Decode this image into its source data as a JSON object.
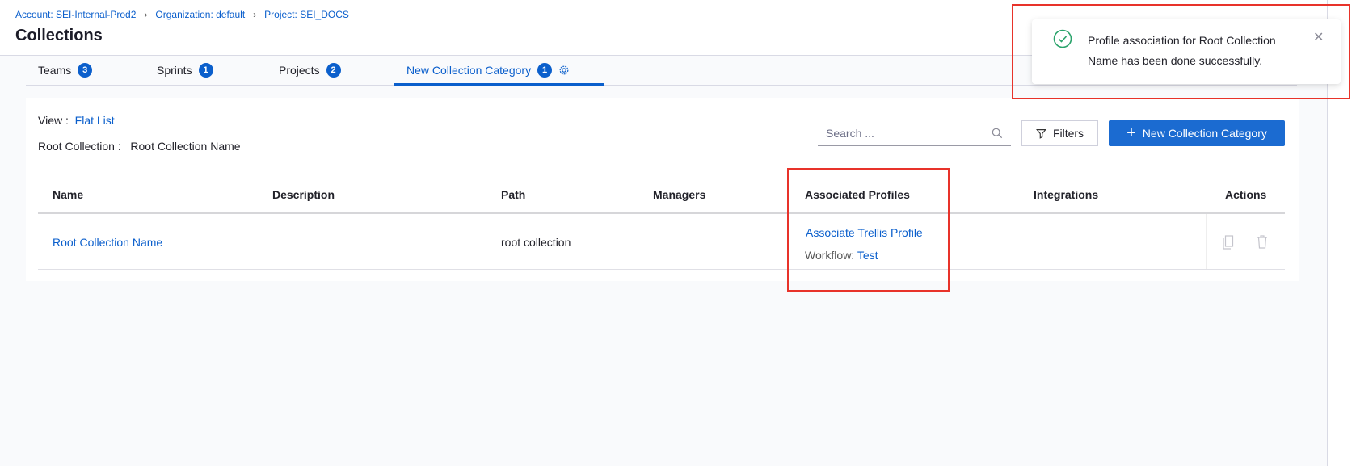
{
  "breadcrumb": [
    {
      "label": "Account: SEI-Internal-Prod2"
    },
    {
      "label": "Organization: default"
    },
    {
      "label": "Project: SEI_DOCS"
    }
  ],
  "page_title": "Collections",
  "tabs": [
    {
      "label": "Teams",
      "count": "3"
    },
    {
      "label": "Sprints",
      "count": "1"
    },
    {
      "label": "Projects",
      "count": "2"
    },
    {
      "label": "New Collection Category",
      "count": "1",
      "active": true
    }
  ],
  "view": {
    "label": "View :",
    "value": "Flat List"
  },
  "root_collection": {
    "label": "Root Collection :",
    "value": "Root Collection Name"
  },
  "search": {
    "placeholder": "Search ..."
  },
  "filters_label": "Filters",
  "new_button_label": "New Collection Category",
  "table": {
    "columns": [
      "Name",
      "Description",
      "Path",
      "Managers",
      "Associated Profiles",
      "Integrations",
      "Actions"
    ],
    "rows": [
      {
        "name": "Root Collection Name",
        "description": "",
        "path": "root collection",
        "managers": "",
        "profile_link": "Associate Trellis Profile",
        "workflow_label": "Workflow:",
        "workflow_value": "Test",
        "integrations": ""
      }
    ]
  },
  "toast": {
    "message": "Profile association for Root Collection Name has been done successfully.",
    "status": "success"
  },
  "colors": {
    "accent": "#0b5fcc",
    "success": "#2aa36b",
    "highlight": "#e8332a"
  }
}
